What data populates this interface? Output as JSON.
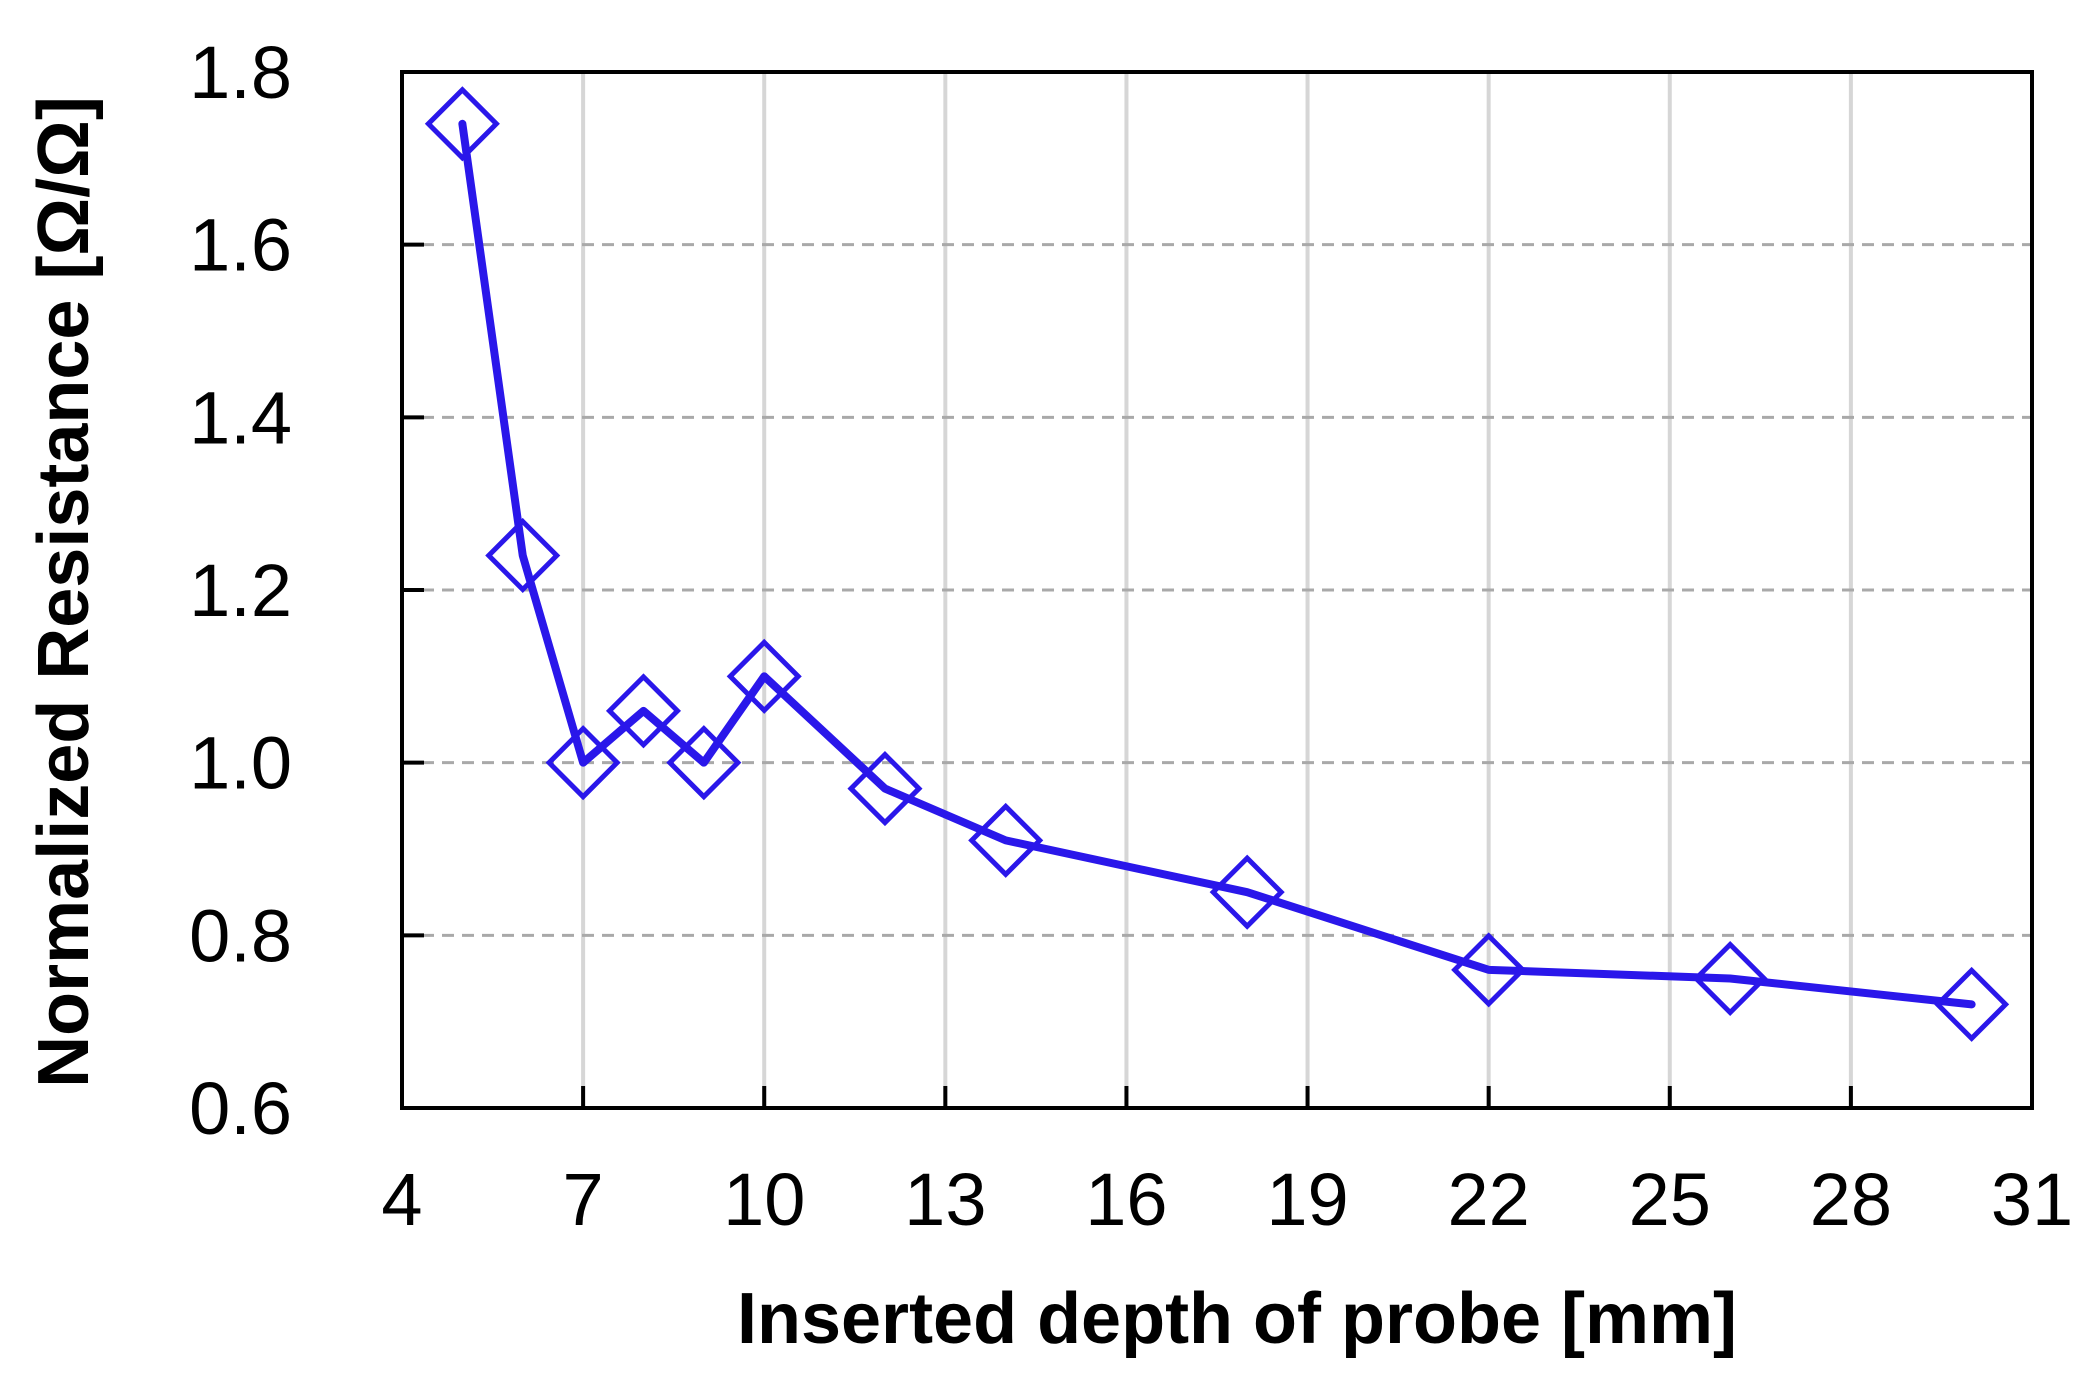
{
  "chart_data": {
    "type": "line",
    "title": "",
    "xlabel": "Inserted depth of probe [mm]",
    "ylabel": "Normalized Resistance [Ω/Ω]",
    "xlim": [
      4,
      31
    ],
    "ylim": [
      0.6,
      1.8
    ],
    "x_ticks": [
      4,
      7,
      10,
      13,
      16,
      19,
      22,
      25,
      28,
      31
    ],
    "y_ticks": [
      0.6,
      0.8,
      1.0,
      1.2,
      1.4,
      1.6,
      1.8
    ],
    "x_tick_labels": [
      "4",
      "7",
      "10",
      "13",
      "16",
      "19",
      "22",
      "25",
      "28",
      "31"
    ],
    "y_tick_labels": [
      "0.6",
      "0.8",
      "1.0",
      "1.2",
      "1.4",
      "1.6",
      "1.8"
    ],
    "grid": {
      "vertical": "solid",
      "horizontal": "dashed"
    },
    "marker": "diamond-open",
    "colors": {
      "series": "#2a17ea",
      "vertical_grid": "#d6d6d6",
      "horizontal_grid": "#a9a9a9",
      "axes": "#000000"
    },
    "series": [
      {
        "x": [
          5,
          6,
          7,
          8,
          9,
          10,
          12,
          14,
          18,
          22,
          26,
          30
        ],
        "y": [
          1.74,
          1.24,
          1.0,
          1.06,
          1.0,
          1.1,
          0.97,
          0.91,
          0.85,
          0.76,
          0.75,
          0.72
        ]
      }
    ]
  }
}
